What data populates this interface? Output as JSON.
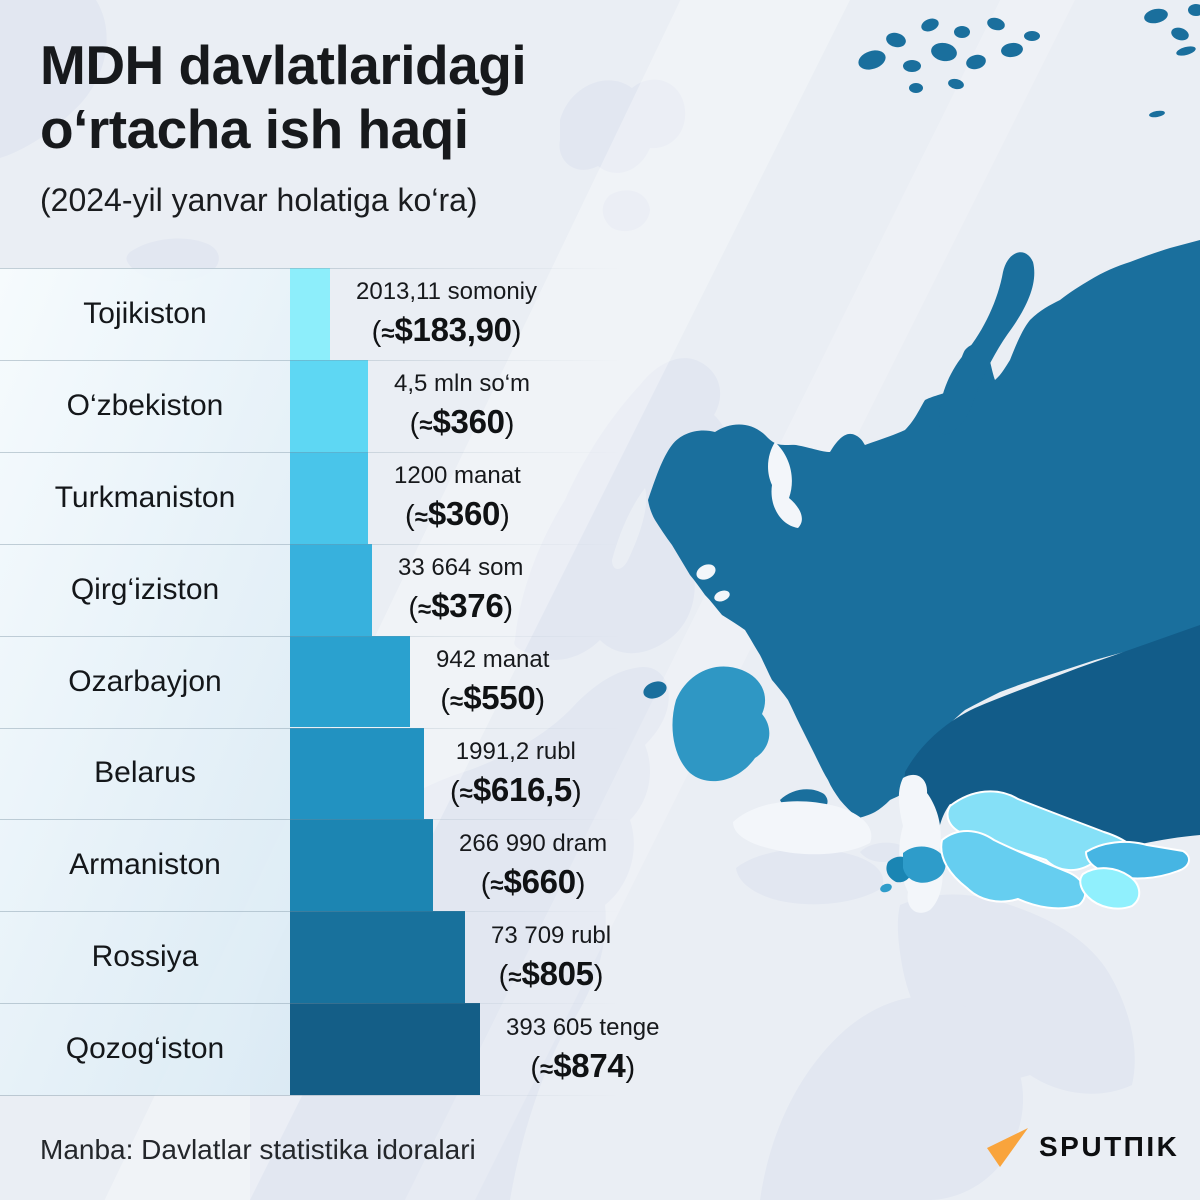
{
  "title": {
    "line1": "MDH davlatlaridagi",
    "line2": "o‘rtacha ish haqi",
    "subtitle": "(2024-yil yanvar holatiga ko‘ra)"
  },
  "source_note": "Manba: Davlatlar statistika idoralari",
  "logo_text": "SPUTΠIK",
  "logo_mark_color": "#F9A43C",
  "chart_data": {
    "type": "bar",
    "orientation": "horizontal",
    "title": "MDH davlatlaridagi o‘rtacha ish haqi",
    "subtitle": "(2024-yil yanvar holatiga ko‘ra)",
    "unit": "USD",
    "max_usd": 874,
    "usd_open": "(≈",
    "usd_close": ")",
    "rows": [
      {
        "country": "Tojikiston",
        "local_amount": "2013,11 somoniy",
        "usd_display": "$183,90",
        "usd": 183.9,
        "color": "#8DEEFB"
      },
      {
        "country": "O‘zbekiston",
        "local_amount": "4,5 mln so‘m",
        "usd_display": "$360",
        "usd": 360,
        "color": "#5ED7F3"
      },
      {
        "country": "Turkmaniston",
        "local_amount": "1200 manat",
        "usd_display": "$360",
        "usd": 360,
        "color": "#49C5EA"
      },
      {
        "country": "Qirg‘iziston",
        "local_amount": "33 664 som",
        "usd_display": "$376",
        "usd": 376,
        "color": "#37B1DD"
      },
      {
        "country": "Ozarbayjon",
        "local_amount": "942 manat",
        "usd_display": "$550",
        "usd": 550,
        "color": "#2AA1CF"
      },
      {
        "country": "Belarus",
        "local_amount": "1991,2 rubl",
        "usd_display": "$616,5",
        "usd": 616.5,
        "color": "#2292C1"
      },
      {
        "country": "Armaniston",
        "local_amount": "266 990 dram",
        "usd_display": "$660",
        "usd": 660,
        "color": "#1C85B2"
      },
      {
        "country": "Rossiya",
        "local_amount": "73 709 rubl",
        "usd_display": "$805",
        "usd": 805,
        "color": "#18719C"
      },
      {
        "country": "Qozog‘iston",
        "local_amount": "393 605 tenge",
        "usd_display": "$874",
        "usd": 874,
        "color": "#145E87"
      }
    ]
  },
  "map": {
    "region": "CIS / Eurasia choropleth",
    "colors": {
      "russia": "#1A6F9D",
      "kazakhstan": "#125C89",
      "belarus": "#2F97C4",
      "azerbaijan": "#2E9CCA",
      "armenia": "#1A85B3",
      "turkmenistan": "#66CEF0",
      "uzbekistan": "#85E0F7",
      "kyrgyzstan": "#46B5E3",
      "tajikistan": "#90F0FD",
      "non_cis_land": "#E2E7F1",
      "sea": "#EAEEF4",
      "water": "#F3F6FA"
    }
  }
}
